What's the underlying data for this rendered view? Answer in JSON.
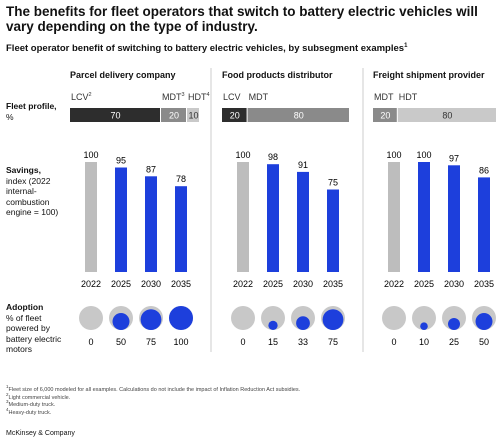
{
  "title": "The benefits for fleet operators that switch to battery electric vehicles will vary depending on the type of industry.",
  "subtitle": "Fleet operator benefit of switching to battery electric vehicles, by subsegment examples",
  "subtitle_note": "1",
  "row_labels": {
    "fleet": {
      "title": "Fleet profile,",
      "sub": "%"
    },
    "savings": {
      "title": "Savings,",
      "sub": "index (2022 internal-combustion engine = 100)"
    },
    "adoption": {
      "title": "Adoption",
      "sub": "% of fleet powered by battery electric motors"
    }
  },
  "chart_data": [
    {
      "type": "panel",
      "title": "Parcel delivery company",
      "fleet": {
        "categories": [
          "LCV",
          "MDT",
          "HDT"
        ],
        "notes": [
          "2",
          "3",
          "4"
        ],
        "values": [
          70,
          20,
          10
        ],
        "colors": [
          "#2d2d2d",
          "#8a8a8a",
          "#c9c9c9"
        ]
      },
      "savings": {
        "categories": [
          "2022",
          "2025",
          "2030",
          "2035"
        ],
        "values": [
          100,
          95,
          87,
          78
        ]
      },
      "adoption": {
        "values": [
          0,
          50,
          75,
          100
        ]
      }
    },
    {
      "type": "panel",
      "title": "Food products distributor",
      "fleet": {
        "categories": [
          "LCV",
          "MDT"
        ],
        "values": [
          20,
          80
        ],
        "colors": [
          "#2d2d2d",
          "#8a8a8a"
        ]
      },
      "savings": {
        "categories": [
          "2022",
          "2025",
          "2030",
          "2035"
        ],
        "values": [
          100,
          98,
          91,
          75
        ]
      },
      "adoption": {
        "values": [
          0,
          15,
          33,
          75
        ]
      }
    },
    {
      "type": "panel",
      "title": "Freight shipment provider",
      "fleet": {
        "categories": [
          "MDT",
          "HDT"
        ],
        "values": [
          20,
          80
        ],
        "colors": [
          "#8a8a8a",
          "#c9c9c9"
        ]
      },
      "savings": {
        "categories": [
          "2022",
          "2025",
          "2030",
          "2035"
        ],
        "values": [
          100,
          100,
          97,
          86
        ]
      },
      "adoption": {
        "values": [
          0,
          10,
          25,
          50
        ]
      }
    }
  ],
  "colors": {
    "baseline": "#bdbdbd",
    "electric": "#1d3fdc",
    "empty": "#c8c8c8"
  },
  "footnotes": [
    {
      "mark": "1",
      "text": "Fleet size of 6,000 modeled for all examples. Calculations do not include the impact of Inflation Reduction Act subsidies."
    },
    {
      "mark": "2",
      "text": "Light commercial vehicle."
    },
    {
      "mark": "3",
      "text": "Medium-duty truck."
    },
    {
      "mark": "4",
      "text": "Heavy-duty truck."
    }
  ],
  "source": "McKinsey & Company"
}
